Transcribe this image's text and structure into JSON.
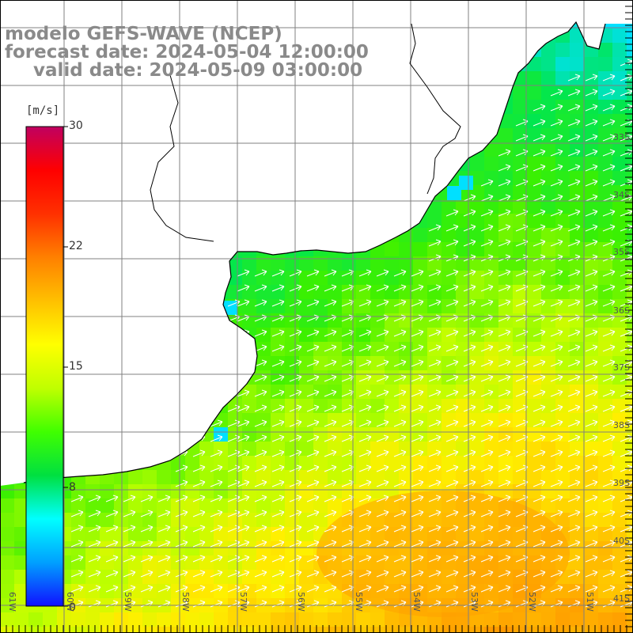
{
  "titles": {
    "model": "modelo GEFS-WAVE (NCEP)",
    "forecast": "forecast date: 2024-05-04 12:00:00",
    "valid": "valid date: 2024-05-09 03:00:00"
  },
  "colorbar": {
    "unit": "[m/s]",
    "ticks": [
      "30",
      "22",
      "15",
      "8",
      "0"
    ],
    "stops": [
      "#1010ff",
      "#00a0ff",
      "#00ffff",
      "#00e040",
      "#40ff00",
      "#c0ff00",
      "#ffff00",
      "#ffc000",
      "#ff8000",
      "#ff3000",
      "#ff0000",
      "#c00060"
    ]
  },
  "grid": {
    "lat_labels": [
      "33S",
      "34S",
      "35S",
      "36S",
      "37S",
      "38S",
      "39S",
      "40S",
      "41S"
    ],
    "lon_labels": [
      "61W",
      "60W",
      "59W",
      "58W",
      "57W",
      "56W",
      "55W",
      "54W",
      "53W",
      "52W",
      "51W"
    ]
  },
  "field": {
    "quantity": "wind speed",
    "units": "m/s",
    "arrow_direction": "northeastward",
    "colors": {
      "low": "#00ff80",
      "mid": "#c8ff00",
      "high": "#ffc000",
      "max": "#ff9000",
      "coast_cyan": "#00e0ff",
      "land": "#ffffff",
      "coastline": "#000000",
      "gridline": "#808080",
      "arrow": "#ffffff"
    }
  }
}
